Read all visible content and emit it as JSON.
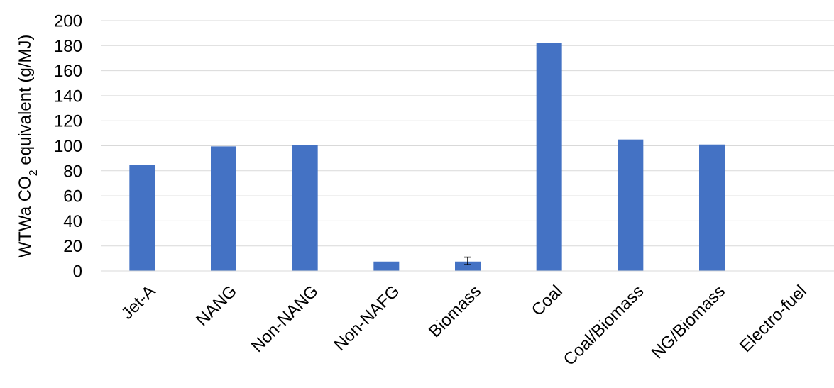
{
  "chart_data": {
    "type": "bar",
    "title": "",
    "xlabel": "",
    "ylabel": {
      "prefix": "WTWa CO",
      "subscript": "2",
      "suffix": " equivalent (g/MJ)"
    },
    "ylim": [
      0,
      200
    ],
    "yticks": [
      "0",
      "20",
      "40",
      "60",
      "80",
      "100",
      "120",
      "140",
      "160",
      "180",
      "200"
    ],
    "grid": "horizontal",
    "legend": "none",
    "bar_color": "#4472C4",
    "categories": [
      "Jet-A",
      "NANG",
      "Non-NANG",
      "Non-NAFG",
      "Biomass",
      "Coal",
      "Coal/Biomass",
      "NG/Biomass",
      "Electro-fuel"
    ],
    "values": [
      84.5,
      99.5,
      100.5,
      7.5,
      7.5,
      182,
      105,
      101,
      0
    ],
    "error_bars": [
      null,
      null,
      null,
      null,
      [
        5,
        11
      ],
      null,
      null,
      null,
      null
    ]
  }
}
